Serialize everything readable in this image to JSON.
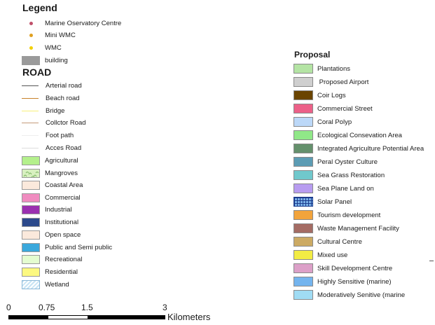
{
  "legend": {
    "title": "Legend",
    "points": [
      {
        "label": "Marine Oservatory Centre",
        "color": "#c0506a"
      },
      {
        "label": "Mini WMC",
        "color": "#e0a020"
      },
      {
        "label": "WMC",
        "color": "#f2d000"
      }
    ],
    "building": {
      "label": "building",
      "color": "#9a9a9a"
    }
  },
  "road": {
    "title": "ROAD",
    "lines": [
      {
        "label": "Arterial road",
        "color": "#555555"
      },
      {
        "label": "Beach road",
        "color": "#c8822a"
      },
      {
        "label": "Bridge",
        "color": "#f7f07a"
      },
      {
        "label": "Collctor Road",
        "color": "#c49a7a"
      },
      {
        "label": "Foot path",
        "color": "#eeeeee"
      },
      {
        "label": "Acces Road",
        "color": "#dddddd"
      }
    ],
    "landuse": [
      {
        "label": "Agricultural",
        "color": "#b4f08c",
        "icon": "fill"
      },
      {
        "label": "Mangroves",
        "color": "#d8f0c0",
        "icon": "mangrove-pattern"
      },
      {
        "label": "Coastal Area",
        "color": "#fbe9dc",
        "icon": "fill"
      },
      {
        "label": "Commercial",
        "color": "#f08cc0",
        "icon": "fill"
      },
      {
        "label": "Industrial",
        "color": "#9a30b0",
        "icon": "fill"
      },
      {
        "label": "Institutional",
        "color": "#2c4a8c",
        "icon": "fill"
      },
      {
        "label": "Open space",
        "color": "#fbe9dc",
        "icon": "fill"
      },
      {
        "label": "Public and Semi public",
        "color": "#3aa8dc",
        "icon": "fill"
      },
      {
        "label": "Recreational",
        "color": "#e4fcd0",
        "icon": "fill"
      },
      {
        "label": "Residential",
        "color": "#fcf880",
        "icon": "fill"
      },
      {
        "label": "Wetland",
        "color": "#c8e4f4",
        "icon": "wetland-hatch"
      }
    ]
  },
  "proposal": {
    "title": "Proposal",
    "items": [
      {
        "label": "Plantations",
        "color": "#b4e4a4",
        "icon": "fill"
      },
      {
        "label": " Proposed Airport",
        "color": "#cfcfcf",
        "icon": "fill"
      },
      {
        "label": "Coir Logs",
        "color": "#6a4400",
        "icon": "fill"
      },
      {
        "label": "Commercial Street",
        "color": "#ec6088",
        "icon": "fill"
      },
      {
        "label": "Coral Polyp",
        "color": "#bcd8f8",
        "icon": "fill"
      },
      {
        "label": "Ecological Consevation Area",
        "color": "#90e888",
        "icon": "fill"
      },
      {
        "label": "Integrated Agriculture Potential Area",
        "color": "#64906c",
        "icon": "fill"
      },
      {
        "label": "Peral Oyster Culture",
        "color": "#5c9cb4",
        "icon": "fill"
      },
      {
        "label": "Sea Grass Restoration",
        "color": "#70c8cc",
        "icon": "fill"
      },
      {
        "label": "Sea Plane Land on",
        "color": "#b89cf0",
        "icon": "fill"
      },
      {
        "label": "Solar Panel",
        "color": "#7ab0e8",
        "icon": "solar-grid"
      },
      {
        "label": "Tourism development",
        "color": "#f2a43c",
        "icon": "fill"
      },
      {
        "label": "Waste Management Facility",
        "color": "#a46c64",
        "icon": "fill"
      },
      {
        "label": "Cultural Centre",
        "color": "#ccaa64",
        "icon": "fill"
      },
      {
        "label": "Mixed use",
        "color": "#f2ec44",
        "icon": "fill"
      },
      {
        "label": "Skill Development Centre",
        "color": "#dca0c8",
        "icon": "fill"
      },
      {
        "label": "Highly Sensitive (marine)",
        "color": "#74b4ee",
        "icon": "fill"
      },
      {
        "label": "Moderatively Senitive (marine",
        "color": "#a0dcf4",
        "icon": "fill"
      }
    ]
  },
  "scale": {
    "ticks": [
      "0",
      "0.75",
      "1.5",
      "3"
    ],
    "tick_values": [
      0,
      0.75,
      1.5,
      3
    ],
    "unit": "Kilometers"
  }
}
